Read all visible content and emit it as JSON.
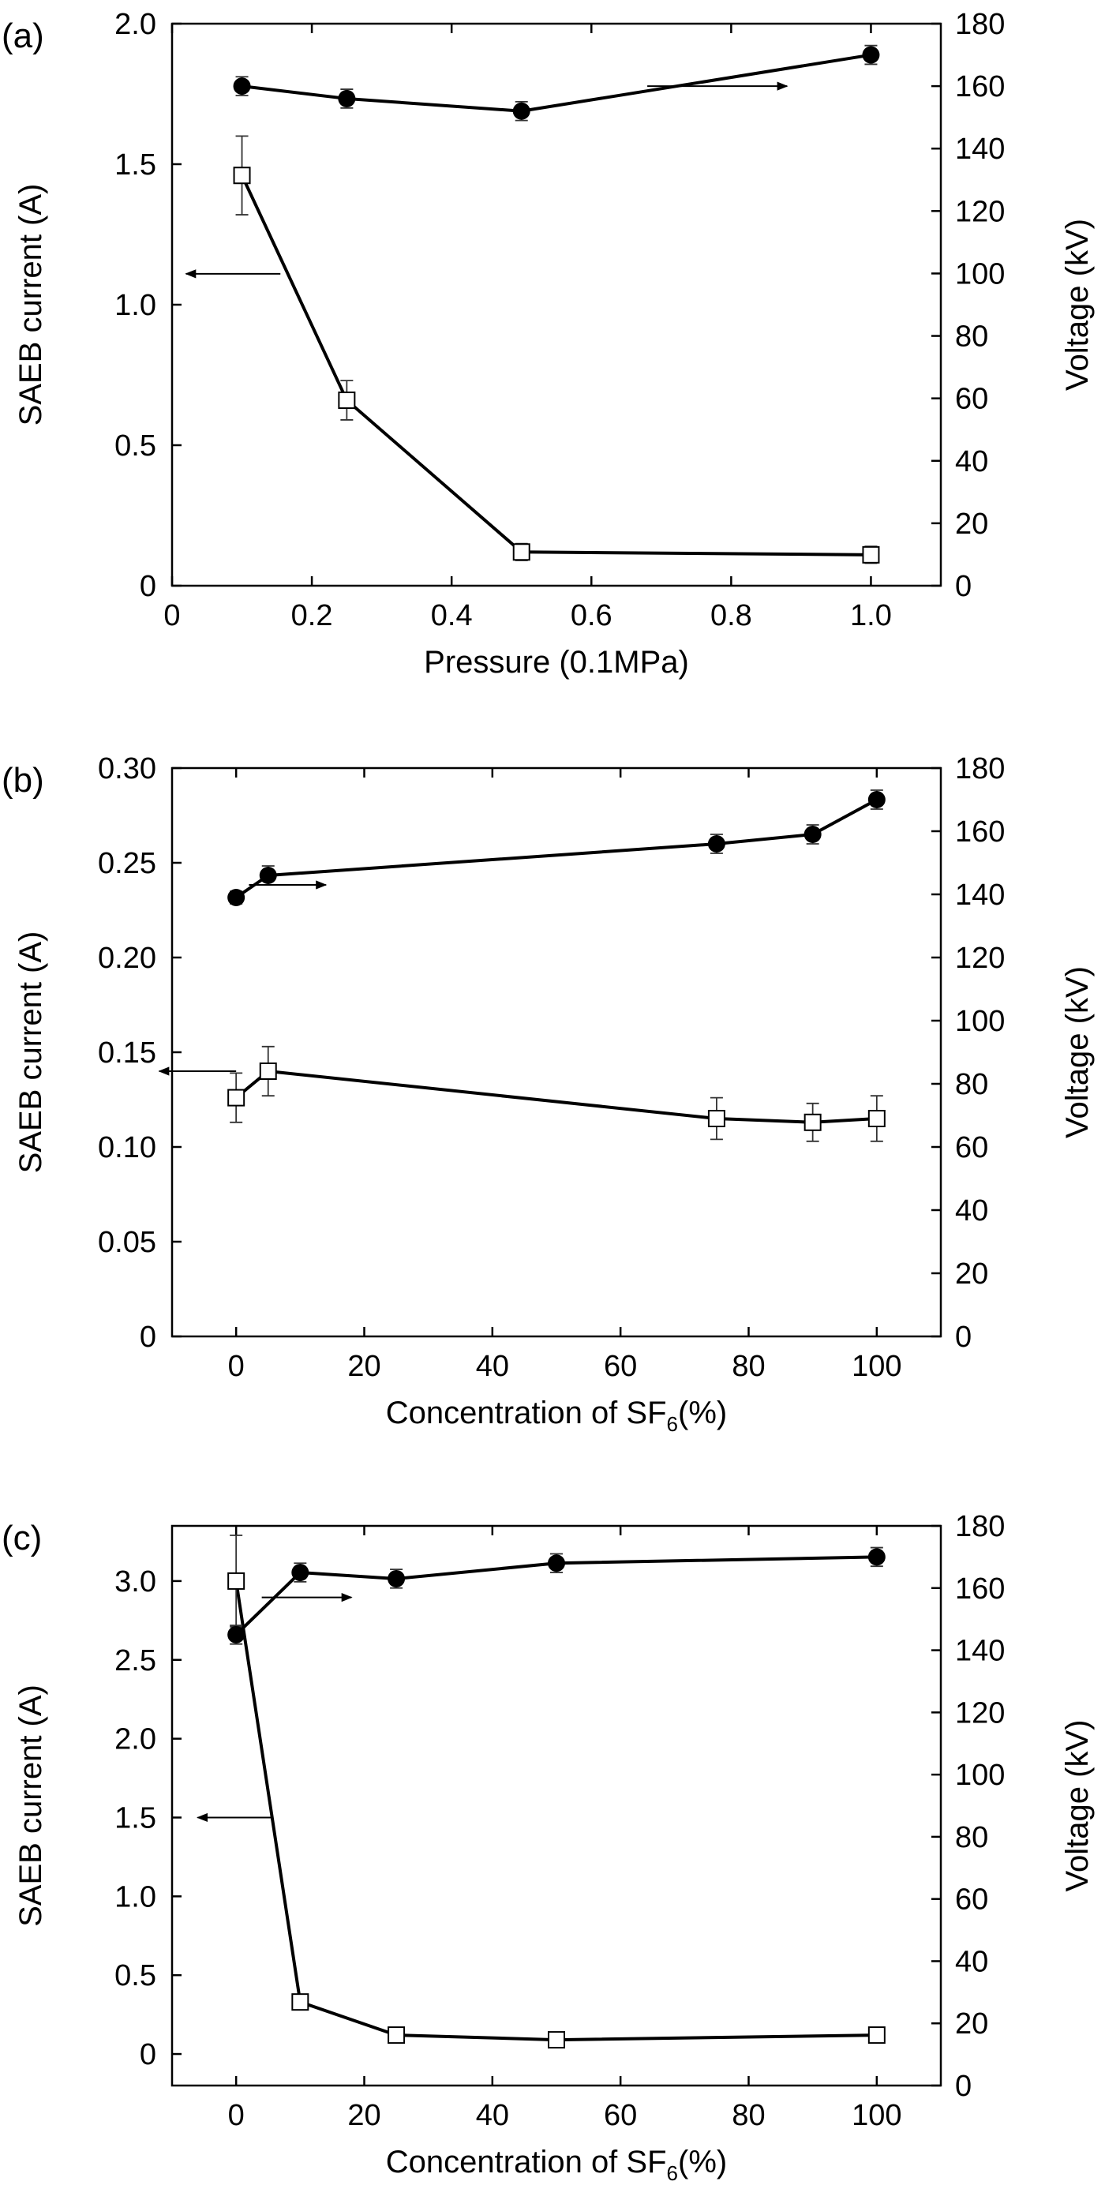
{
  "chart_data": [
    {
      "type": "line",
      "panel_label": "(a)",
      "xlabel": "Pressure (0.1MPa)",
      "xlabel_sub": "",
      "xlabel_tail": "",
      "ylabel": "SAEB current (A)",
      "ylabel_right": "Voltage (kV)",
      "xlim": [
        0,
        1.1
      ],
      "ylim": [
        0,
        2.0
      ],
      "ylim_right": [
        0,
        180
      ],
      "x_ticks": [
        0,
        0.2,
        0.4,
        0.6,
        0.8,
        1.0
      ],
      "x_tick_labels": [
        "0",
        "0.2",
        "0.4",
        "0.6",
        "0.8",
        "1.0"
      ],
      "y_ticks": [
        0,
        0.5,
        1.0,
        1.5,
        2.0
      ],
      "y_tick_labels": [
        "0",
        "0.5",
        "1.0",
        "1.5",
        "2.0"
      ],
      "y_right_ticks": [
        0,
        20,
        40,
        60,
        80,
        100,
        120,
        140,
        160,
        180
      ],
      "y_right_tick_labels": [
        "0",
        "20",
        "40",
        "60",
        "80",
        "100",
        "120",
        "140",
        "160",
        "180"
      ],
      "grid": false,
      "series": [
        {
          "axis": "left",
          "marker": "open-square",
          "x": [
            0.1,
            0.25,
            0.5,
            1.0
          ],
          "y": [
            1.46,
            0.66,
            0.12,
            0.11
          ],
          "err": [
            0.14,
            0.07,
            0.03,
            0.03
          ]
        },
        {
          "axis": "right",
          "marker": "filled-circle",
          "x": [
            0.1,
            0.25,
            0.5,
            1.0
          ],
          "y": [
            160,
            156,
            152,
            170
          ],
          "err": [
            3,
            3,
            3,
            3
          ]
        }
      ],
      "arrows": [
        {
          "x1": 0.155,
          "y1": 1.11,
          "x2": 0.02,
          "y2": 1.11,
          "axis": "left"
        },
        {
          "x1": 0.68,
          "y1": 160,
          "x2": 0.88,
          "y2": 160,
          "axis": "right"
        }
      ]
    },
    {
      "type": "line",
      "panel_label": "(b)",
      "xlabel": "Concentration of SF",
      "xlabel_sub": "6",
      "xlabel_tail": "(%)",
      "ylabel": "SAEB current (A)",
      "ylabel_right": "Voltage (kV)",
      "xlim": [
        -10,
        110
      ],
      "ylim": [
        0,
        0.3
      ],
      "ylim_right": [
        0,
        180
      ],
      "x_ticks": [
        0,
        20,
        40,
        60,
        80,
        100
      ],
      "x_tick_labels": [
        "0",
        "20",
        "40",
        "60",
        "80",
        "100"
      ],
      "y_ticks": [
        0,
        0.05,
        0.1,
        0.15,
        0.2,
        0.25,
        0.3
      ],
      "y_tick_labels": [
        "0",
        "0.05",
        "0.10",
        "0.15",
        "0.20",
        "0.25",
        "0.30"
      ],
      "y_right_ticks": [
        0,
        20,
        40,
        60,
        80,
        100,
        120,
        140,
        160,
        180
      ],
      "y_right_tick_labels": [
        "0",
        "20",
        "40",
        "60",
        "80",
        "100",
        "120",
        "140",
        "160",
        "180"
      ],
      "grid": false,
      "series": [
        {
          "axis": "left",
          "marker": "open-square",
          "x": [
            0,
            5,
            75,
            90,
            100
          ],
          "y": [
            0.126,
            0.14,
            0.115,
            0.113,
            0.115
          ],
          "err": [
            0.013,
            0.013,
            0.011,
            0.01,
            0.012
          ]
        },
        {
          "axis": "right",
          "marker": "filled-circle",
          "x": [
            0,
            5,
            75,
            90,
            100
          ],
          "y": [
            139,
            146,
            156,
            159,
            170
          ],
          "err": [
            2,
            3,
            3,
            3,
            3
          ]
        }
      ],
      "arrows": [
        {
          "x1": 0,
          "y1": 0.14,
          "x2": -12,
          "y2": 0.14,
          "axis": "left"
        },
        {
          "x1": 2,
          "y1": 143,
          "x2": 14,
          "y2": 143,
          "axis": "right"
        }
      ]
    },
    {
      "type": "line",
      "panel_label": "(c)",
      "xlabel": "Concentration of SF",
      "xlabel_sub": "6",
      "xlabel_tail": "(%)",
      "ylabel": "SAEB current (A)",
      "ylabel_right": "Voltage (kV)",
      "xlim": [
        -10,
        110
      ],
      "ylim": [
        -0.2,
        3.35
      ],
      "ylim_right": [
        0,
        180
      ],
      "x_ticks": [
        0,
        20,
        40,
        60,
        80,
        100
      ],
      "x_tick_labels": [
        "0",
        "20",
        "40",
        "60",
        "80",
        "100"
      ],
      "y_ticks": [
        0,
        0.5,
        1.0,
        1.5,
        2.0,
        2.5,
        3.0
      ],
      "y_tick_labels": [
        "0",
        "0.5",
        "1.0",
        "1.5",
        "2.0",
        "2.5",
        "3.0"
      ],
      "y_right_ticks": [
        0,
        20,
        40,
        60,
        80,
        100,
        120,
        140,
        160,
        180
      ],
      "y_right_tick_labels": [
        "0",
        "20",
        "40",
        "60",
        "80",
        "100",
        "120",
        "140",
        "160",
        "180"
      ],
      "grid": false,
      "series": [
        {
          "axis": "left",
          "marker": "open-square",
          "x": [
            0,
            10,
            25,
            50,
            100
          ],
          "y": [
            3.0,
            0.33,
            0.12,
            0.09,
            0.12
          ],
          "err": [
            0.29,
            0,
            0.03,
            0.03,
            0.03
          ]
        },
        {
          "axis": "right",
          "marker": "filled-circle",
          "x": [
            0,
            10,
            25,
            50,
            100
          ],
          "y": [
            145,
            165,
            163,
            168,
            170
          ],
          "err": [
            3,
            3,
            3,
            3,
            3
          ]
        }
      ],
      "arrows": [
        {
          "x1": 5.5,
          "y1": 1.5,
          "x2": -6,
          "y2": 1.5,
          "axis": "left"
        },
        {
          "x1": 4,
          "y1": 157,
          "x2": 18,
          "y2": 157,
          "axis": "right"
        }
      ]
    }
  ]
}
